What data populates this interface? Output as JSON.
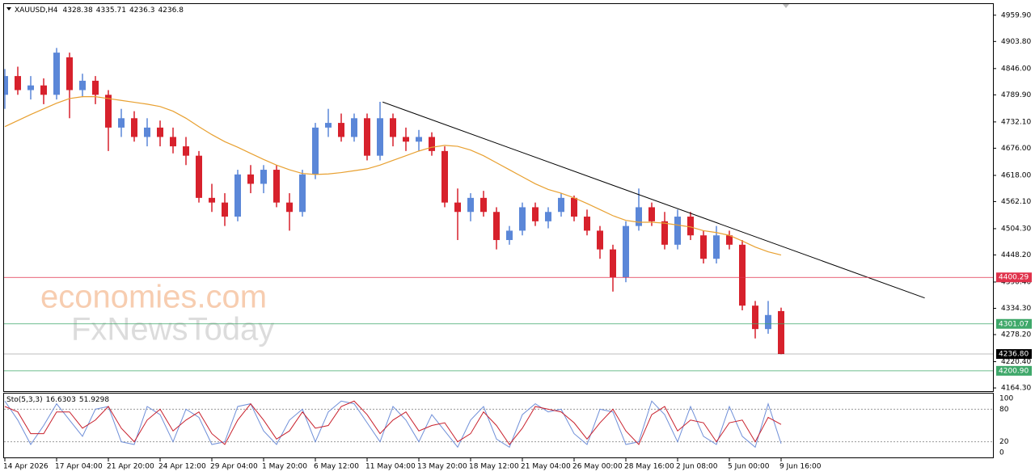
{
  "chart_data": {
    "type": "candlestick",
    "title": "XAUUSD,H4",
    "categories": [
      "14 Apr 2026",
      null,
      null,
      null,
      "17 Apr 04:00",
      null,
      null,
      null,
      "21 Apr 20:00",
      null,
      null,
      null,
      "24 Apr 12:00",
      null,
      null,
      null,
      "29 Apr 04:00",
      null,
      null,
      null,
      "1 May 20:00",
      null,
      null,
      null,
      "6 May 12:00",
      null,
      null,
      null,
      "11 May 04:00",
      null,
      null,
      null,
      "13 May 20:00",
      null,
      null,
      null,
      "18 May 12:00",
      null,
      null,
      null,
      "21 May 04:00",
      null,
      null,
      null,
      "26 May 00:00",
      null,
      null,
      null,
      "28 May 16:00",
      null,
      null,
      null,
      "2 Jun 08:00",
      null,
      null,
      null,
      "5 Jun 00:00",
      null,
      null,
      null,
      "9 Jun 16:00"
    ],
    "open": [
      4790,
      4830,
      4800,
      4810,
      4790,
      4870,
      4800,
      4820,
      4790,
      4720,
      4740,
      4700,
      4720,
      4700,
      4680,
      4660,
      4570,
      4560,
      4530,
      4620,
      4600,
      4630,
      4560,
      4540,
      4620,
      4720,
      4730,
      4700,
      4740,
      4660,
      4740,
      4700,
      4690,
      4700,
      4670,
      4560,
      4540,
      4570,
      4540,
      4480,
      4500,
      4550,
      4520,
      4540,
      4570,
      4530,
      4500,
      4460,
      4400,
      4510,
      4550,
      4520,
      4470,
      4530,
      4490,
      4440,
      4490,
      4470,
      4340,
      4290,
      4328.38
    ],
    "high": [
      4845,
      4850,
      4830,
      4825,
      4890,
      4880,
      4835,
      4830,
      4800,
      4760,
      4755,
      4740,
      4735,
      4720,
      4700,
      4670,
      4600,
      4580,
      4630,
      4640,
      4640,
      4640,
      4580,
      4630,
      4730,
      4760,
      4750,
      4750,
      4750,
      4775,
      4750,
      4720,
      4715,
      4710,
      4680,
      4590,
      4580,
      4585,
      4550,
      4510,
      4560,
      4560,
      4550,
      4580,
      4575,
      4545,
      4510,
      4470,
      4520,
      4590,
      4560,
      4540,
      4545,
      4540,
      4500,
      4510,
      4500,
      4480,
      4350,
      4350,
      4335.71
    ],
    "low": [
      4760,
      4790,
      4780,
      4770,
      4780,
      4740,
      4785,
      4770,
      4670,
      4700,
      4690,
      4680,
      4680,
      4665,
      4640,
      4560,
      4540,
      4510,
      4520,
      4580,
      4580,
      4550,
      4500,
      4530,
      4610,
      4700,
      4690,
      4690,
      4650,
      4650,
      4680,
      4670,
      4670,
      4660,
      4550,
      4480,
      4520,
      4530,
      4460,
      4470,
      4490,
      4510,
      4505,
      4530,
      4520,
      4490,
      4440,
      4370,
      4390,
      4500,
      4510,
      4460,
      4460,
      4480,
      4430,
      4430,
      4460,
      4330,
      4270,
      4280,
      4236.3
    ],
    "close": [
      4830,
      4800,
      4810,
      4790,
      4880,
      4800,
      4820,
      4790,
      4720,
      4740,
      4700,
      4720,
      4700,
      4680,
      4660,
      4570,
      4560,
      4530,
      4620,
      4600,
      4630,
      4560,
      4540,
      4620,
      4720,
      4730,
      4700,
      4740,
      4660,
      4740,
      4700,
      4690,
      4700,
      4670,
      4560,
      4540,
      4570,
      4540,
      4480,
      4500,
      4550,
      4520,
      4540,
      4570,
      4530,
      4500,
      4460,
      4400,
      4510,
      4550,
      4520,
      4470,
      4530,
      4490,
      4440,
      4490,
      4470,
      4340,
      4290,
      4320,
      4236.8
    ],
    "colors": {
      "up": "#5b87d8",
      "down": "#d7212c"
    },
    "ma": {
      "color": "#e8a030",
      "values": [
        4722,
        4735,
        4748,
        4760,
        4772,
        4782,
        4786,
        4786,
        4782,
        4778,
        4774,
        4770,
        4765,
        4755,
        4740,
        4722,
        4705,
        4690,
        4678,
        4665,
        4652,
        4640,
        4630,
        4622,
        4620,
        4621,
        4624,
        4628,
        4632,
        4640,
        4650,
        4660,
        4670,
        4678,
        4682,
        4680,
        4672,
        4660,
        4645,
        4630,
        4615,
        4600,
        4588,
        4580,
        4570,
        4558,
        4545,
        4532,
        4522,
        4518,
        4518,
        4516,
        4512,
        4508,
        4500,
        4496,
        4490,
        4478,
        4465,
        4455,
        4448
      ]
    },
    "ylim": [
      4157.5,
      4983.7
    ],
    "yticks": [
      {
        "value": 4959.9,
        "label": "4959.90"
      },
      {
        "value": 4903.8,
        "label": "4903.80"
      },
      {
        "value": 4846,
        "label": "4846.00"
      },
      {
        "value": 4789.9,
        "label": "4789.90"
      },
      {
        "value": 4732.1,
        "label": "4732.10"
      },
      {
        "value": 4676,
        "label": "4676.00"
      },
      {
        "value": 4618,
        "label": "4618.00"
      },
      {
        "value": 4562.1,
        "label": "4562.10"
      },
      {
        "value": 4504.3,
        "label": "4504.30"
      },
      {
        "value": 4448.2,
        "label": "4448.20"
      },
      {
        "value": 4390.4,
        "label": "4390.40"
      },
      {
        "value": 4334.3,
        "label": "4334.30"
      },
      {
        "value": 4278.2,
        "label": "4278.20"
      },
      {
        "value": 4220.4,
        "label": "4220.40"
      },
      {
        "value": 4164.3,
        "label": "4164.30"
      }
    ],
    "levels": [
      {
        "value": 4400.29,
        "color": "#e0324b"
      },
      {
        "value": 4301.07,
        "color": "#3fa86a"
      },
      {
        "value": 4236.8,
        "label": "4236.80",
        "color": "#000000"
      },
      {
        "value": 4200.9,
        "label": "4200.90",
        "color": "#3fa86a"
      }
    ],
    "trendline": {
      "start": {
        "index": 29.2,
        "price": 4774.6
      },
      "end": {
        "index": 71.1,
        "price": 4356.4
      },
      "color": "#000000"
    },
    "watermark": [
      "economies.com",
      "FxNewsToday"
    ],
    "indicator": {
      "type": "line",
      "name": "Sto(5,3,3)",
      "ylim": [
        -8.8,
        108.8
      ],
      "yticks": [
        100,
        80,
        20,
        0
      ],
      "series": [
        {
          "color": "#6f8fd8",
          "values": [
            95,
            60,
            15,
            50,
            90,
            60,
            30,
            80,
            85,
            20,
            15,
            85,
            70,
            20,
            80,
            65,
            15,
            20,
            85,
            90,
            40,
            15,
            60,
            80,
            20,
            75,
            95,
            90,
            55,
            20,
            85,
            60,
            20,
            70,
            40,
            10,
            60,
            85,
            25,
            10,
            70,
            90,
            75,
            80,
            35,
            15,
            80,
            75,
            15,
            20,
            95,
            70,
            20,
            85,
            30,
            15,
            85,
            30,
            10,
            90,
            16.6303
          ]
        },
        {
          "color": "#c8202c",
          "values": [
            85,
            75,
            35,
            35,
            75,
            75,
            45,
            60,
            85,
            45,
            20,
            60,
            80,
            40,
            60,
            75,
            35,
            15,
            60,
            90,
            60,
            25,
            40,
            75,
            45,
            50,
            85,
            95,
            70,
            35,
            60,
            75,
            40,
            50,
            55,
            20,
            35,
            75,
            50,
            15,
            45,
            85,
            80,
            75,
            55,
            25,
            55,
            80,
            40,
            15,
            70,
            85,
            40,
            60,
            55,
            20,
            55,
            60,
            20,
            65,
            51.9298
          ]
        }
      ]
    }
  }
}
